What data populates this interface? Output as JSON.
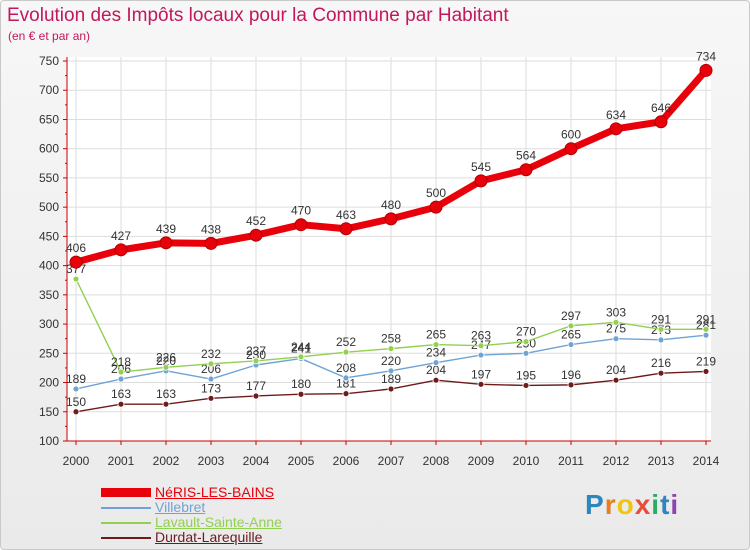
{
  "chart_data": {
    "type": "line",
    "title": "Evolution des Impôts locaux pour la Commune par Habitant",
    "subtitle": "(en € et par an)",
    "x": [
      "2000",
      "2001",
      "2002",
      "2003",
      "2004",
      "2005",
      "2006",
      "2007",
      "2008",
      "2009",
      "2010",
      "2011",
      "2012",
      "2013",
      "2014"
    ],
    "y_ticks": [
      "100",
      "150",
      "200",
      "250",
      "300",
      "350",
      "400",
      "450",
      "500",
      "550",
      "600",
      "650",
      "700",
      "750"
    ],
    "ylim": [
      100,
      750
    ],
    "grid": true,
    "series": [
      {
        "name": "NéRIS-LES-BAINS",
        "color": "#e8000b",
        "values": [
          406,
          427,
          439,
          438,
          452,
          470,
          463,
          480,
          500,
          545,
          564,
          600,
          634,
          646,
          734
        ]
      },
      {
        "name": "Villebret",
        "color": "#6fa3d6",
        "values": [
          189,
          206,
          220,
          206,
          230,
          241,
          208,
          220,
          234,
          247,
          250,
          265,
          275,
          273,
          281
        ]
      },
      {
        "name": "Lavault-Sainte-Anne",
        "color": "#92d050",
        "values": [
          377,
          218,
          226,
          232,
          237,
          244,
          252,
          258,
          265,
          263,
          270,
          297,
          303,
          291,
          291
        ]
      },
      {
        "name": "Durdat-Larequille",
        "color": "#6d1b1b",
        "values": [
          150,
          163,
          163,
          173,
          177,
          180,
          181,
          189,
          204,
          197,
          195,
          196,
          204,
          216,
          219
        ]
      }
    ]
  },
  "branding": {
    "name": "Proxiti",
    "letters": [
      {
        "char": "P",
        "color": "#2e86c1"
      },
      {
        "char": "r",
        "color": "#e67e22"
      },
      {
        "char": "o",
        "color": "#f1c40f"
      },
      {
        "char": "x",
        "color": "#e74c3c"
      },
      {
        "char": "i",
        "color": "#27ae60"
      },
      {
        "char": "t",
        "color": "#2e86c1"
      },
      {
        "char": "i",
        "color": "#8e44ad"
      }
    ]
  }
}
